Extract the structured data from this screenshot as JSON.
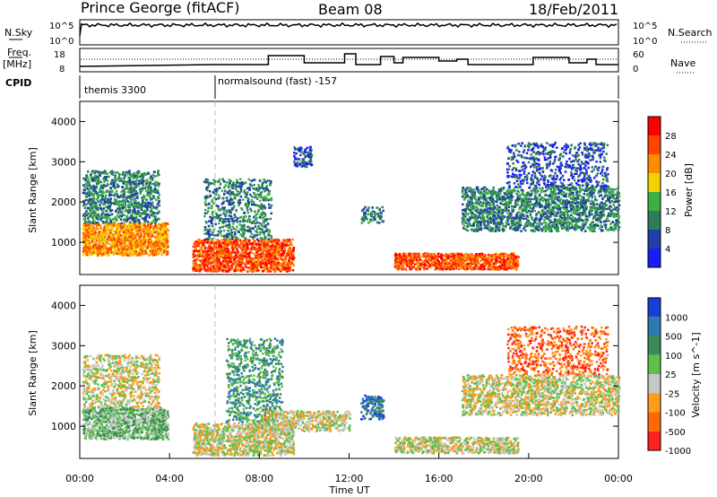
{
  "header": {
    "station": "Prince George (fitACF)",
    "beam": "Beam 08",
    "date": "18/Feb/2011"
  },
  "top_panels": {
    "nsky_label": "N.Sky",
    "nsky_ticks": [
      "10^5",
      "10^0"
    ],
    "nsearch_label": "N.Search",
    "nsearch_ticks": [
      "10^5",
      "10^0"
    ],
    "freq_label_1": "Freq.",
    "freq_label_2": "[MHz]",
    "freq_ticks": [
      "18",
      "8"
    ],
    "nave_label": "Nave",
    "nave_ticks": [
      "60",
      "0"
    ],
    "cpid_label": "CPID",
    "cpid_segments": [
      {
        "text": "themis 3300",
        "start_hour": 0
      },
      {
        "text": "normalsound (fast) -157",
        "start_hour": 6
      }
    ]
  },
  "colors": {
    "power": [
      "#1a1aff",
      "#1f3fa8",
      "#2e7d5a",
      "#3cb043",
      "#f2d300",
      "#ff8c00",
      "#ff4500",
      "#ff0000"
    ],
    "velocity": [
      "#1a3fd6",
      "#2a7bb0",
      "#3a8a55",
      "#5cc04a",
      "#c8c8c8",
      "#ff9c1a",
      "#ff6a00",
      "#ff2020"
    ]
  },
  "chart_data": [
    {
      "type": "heatmap",
      "name": "power",
      "xlabel": "",
      "ylabel": "Slant Range [km]",
      "xlim": [
        "00:00",
        "00:00"
      ],
      "ylim": [
        200,
        4500
      ],
      "y_ticks": [
        "1000",
        "2000",
        "3000",
        "4000"
      ],
      "colorbar_label": "Power [dB]",
      "colorbar_ticks": [
        "4",
        "8",
        "12",
        "16",
        "20",
        "24",
        "28"
      ],
      "dominant_regions": [
        {
          "x_start_hour": 0.0,
          "x_end_hour": 4.0,
          "y_range_km": [
            600,
            2800
          ]
        },
        {
          "x_start_hour": 5.0,
          "x_end_hour": 9.5,
          "y_range_km": [
            300,
            2600
          ]
        },
        {
          "x_start_hour": 14.0,
          "x_end_hour": 19.5,
          "y_range_km": [
            300,
            800
          ]
        },
        {
          "x_start_hour": 17.0,
          "x_end_hour": 24.0,
          "y_range_km": [
            1200,
            3500
          ]
        }
      ]
    },
    {
      "type": "heatmap",
      "name": "velocity",
      "xlabel": "Time UT",
      "ylabel": "Slant Range [km]",
      "xlim": [
        "00:00",
        "00:00"
      ],
      "ylim": [
        200,
        4500
      ],
      "x_ticks": [
        "00:00",
        "04:00",
        "08:00",
        "12:00",
        "16:00",
        "20:00",
        "00:00"
      ],
      "y_ticks": [
        "1000",
        "2000",
        "3000",
        "4000"
      ],
      "colorbar_label": "Velocity [m s^-1]",
      "colorbar_ticks": [
        "1000",
        "500",
        "100",
        "25",
        "-25",
        "-100",
        "-500",
        "-1000"
      ]
    }
  ]
}
